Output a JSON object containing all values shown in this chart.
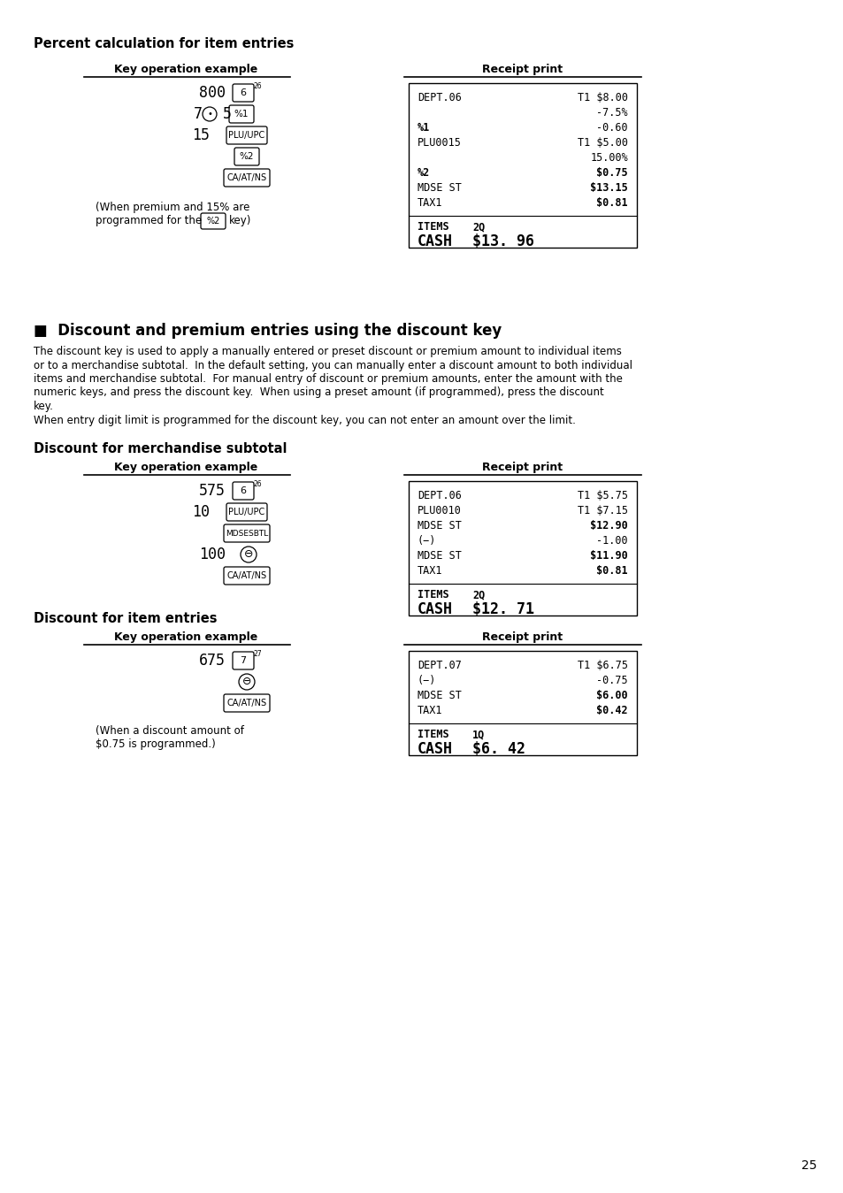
{
  "bg_color": "#ffffff",
  "page_number": "25",
  "section1_title": "Percent calculation for item entries",
  "section2_title": "■  Discount and premium entries using the discount key",
  "section3_title": "Discount for merchandise subtotal",
  "section4_title": "Discount for item entries",
  "col_left_label": "Key operation example",
  "col_right_label": "Receipt print",
  "body_text_lines": [
    "The discount key is used to apply a manually entered or preset discount or premium amount to individual items",
    "or to a merchandise subtotal.  In the default setting, you can manually enter a discount amount to both individual",
    "items and merchandise subtotal.  For manual entry of discount or premium amounts, enter the amount with the",
    "numeric keys, and press the discount key.  When using a preset amount (if programmed), press the discount",
    "key.",
    "When entry digit limit is programmed for the discount key, you can not enter an amount over the limit."
  ],
  "receipt1_lines": [
    [
      "DEPT.06",
      "T1 $8.00",
      false,
      false
    ],
    [
      "",
      "-7.5%",
      false,
      false
    ],
    [
      "%1",
      "-0.60",
      true,
      false
    ],
    [
      "PLU0015",
      "T1 $5.00",
      false,
      false
    ],
    [
      "",
      "15.00%",
      false,
      false
    ],
    [
      "%2",
      "$0.75",
      true,
      true
    ],
    [
      "MDSE ST",
      "$13.15",
      false,
      true
    ],
    [
      "TAX1",
      "$0.81",
      false,
      true
    ]
  ],
  "receipt1_items": "2Q",
  "receipt1_cash": "$13. 96",
  "receipt2_lines": [
    [
      "DEPT.06",
      "T1 $5.75",
      false,
      false
    ],
    [
      "PLU0010",
      "T1 $7.15",
      false,
      false
    ],
    [
      "MDSE ST",
      "$12.90",
      false,
      true
    ],
    [
      "(−)",
      "-1.00",
      false,
      false
    ],
    [
      "MDSE ST",
      "$11.90",
      false,
      true
    ],
    [
      "TAX1",
      "$0.81",
      false,
      true
    ]
  ],
  "receipt2_items": "2Q",
  "receipt2_cash": "$12. 71",
  "receipt3_lines": [
    [
      "DEPT.07",
      "T1 $6.75",
      false,
      false
    ],
    [
      "(−)",
      "-0.75",
      false,
      false
    ],
    [
      "MDSE ST",
      "$6.00",
      false,
      true
    ],
    [
      "TAX1",
      "$0.42",
      false,
      true
    ]
  ],
  "receipt3_items": "1Q",
  "receipt3_cash": "$6. 42"
}
